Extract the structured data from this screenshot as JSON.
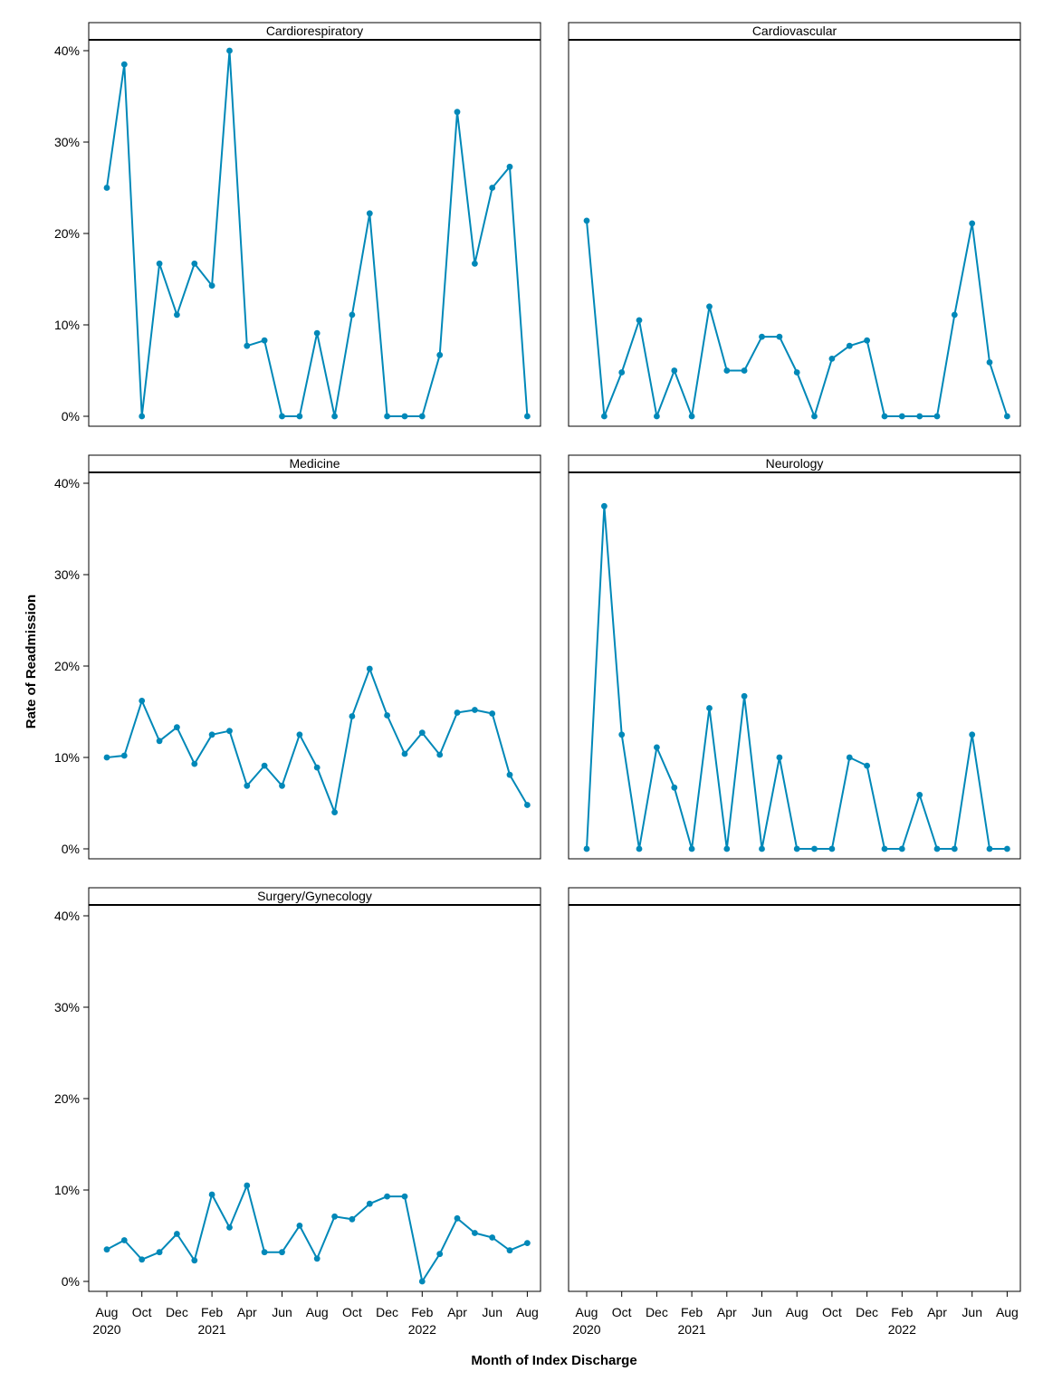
{
  "chart_data": {
    "type": "line",
    "layout": "facet-grid",
    "xlabel": "Month of Index Discharge",
    "ylabel": "Rate of Readmission",
    "ylim": [
      0,
      0.4
    ],
    "y_ticks": [
      0,
      0.1,
      0.2,
      0.3,
      0.4
    ],
    "y_tick_labels": [
      "0%",
      "10%",
      "20%",
      "30%",
      "40%"
    ],
    "x_months": [
      "2020-08",
      "2020-09",
      "2020-10",
      "2020-11",
      "2020-12",
      "2021-01",
      "2021-02",
      "2021-03",
      "2021-04",
      "2021-05",
      "2021-06",
      "2021-07",
      "2021-08",
      "2021-09",
      "2021-10",
      "2021-11",
      "2021-12",
      "2022-01",
      "2022-02",
      "2022-03",
      "2022-04",
      "2022-05",
      "2022-06",
      "2022-07",
      "2022-08"
    ],
    "x_tick_labels": [
      {
        "month": "Aug",
        "year": "2020"
      },
      {
        "month": "Oct",
        "year": ""
      },
      {
        "month": "Dec",
        "year": ""
      },
      {
        "month": "Feb",
        "year": "2021"
      },
      {
        "month": "Apr",
        "year": ""
      },
      {
        "month": "Jun",
        "year": ""
      },
      {
        "month": "Aug",
        "year": ""
      },
      {
        "month": "Oct",
        "year": ""
      },
      {
        "month": "Dec",
        "year": ""
      },
      {
        "month": "Feb",
        "year": "2022"
      },
      {
        "month": "Apr",
        "year": ""
      },
      {
        "month": "Jun",
        "year": ""
      },
      {
        "month": "Aug",
        "year": ""
      }
    ],
    "grid": false,
    "series_color": "#0088b8",
    "panels": [
      {
        "title": "Cardiorespiratory",
        "values": [
          0.25,
          0.385,
          0.0,
          0.167,
          0.111,
          0.167,
          0.143,
          0.4,
          0.077,
          0.083,
          0.0,
          0.0,
          0.091,
          0.0,
          0.111,
          0.222,
          0.0,
          0.0,
          0.0,
          0.067,
          0.333,
          0.167,
          0.25,
          0.273,
          0.0
        ]
      },
      {
        "title": "Cardiovascular",
        "values": [
          0.214,
          0.0,
          0.048,
          0.105,
          0.0,
          0.05,
          0.0,
          0.12,
          0.05,
          0.05,
          0.087,
          0.087,
          0.048,
          0.0,
          0.063,
          0.077,
          0.083,
          0.0,
          0.0,
          0.0,
          0.0,
          0.111,
          0.211,
          0.059,
          0.0
        ]
      },
      {
        "title": "Medicine",
        "values": [
          0.1,
          0.102,
          0.162,
          0.118,
          0.133,
          0.093,
          0.125,
          0.129,
          0.069,
          0.091,
          0.069,
          0.125,
          0.089,
          0.04,
          0.145,
          0.197,
          0.146,
          0.104,
          0.127,
          0.103,
          0.149,
          0.152,
          0.148,
          0.081,
          0.048
        ]
      },
      {
        "title": "Neurology",
        "values": [
          0.0,
          0.375,
          0.125,
          0.0,
          0.111,
          0.067,
          0.0,
          0.154,
          0.0,
          0.167,
          0.0,
          0.1,
          0.0,
          0.0,
          0.0,
          0.1,
          0.091,
          0.0,
          0.0,
          0.059,
          0.0,
          0.0,
          0.125,
          0.0,
          0.0
        ]
      },
      {
        "title": "Surgery/Gynecology",
        "values": [
          0.035,
          0.045,
          0.024,
          0.032,
          0.052,
          0.023,
          0.095,
          0.059,
          0.105,
          0.032,
          0.032,
          0.061,
          0.025,
          0.071,
          0.068,
          0.085,
          0.093,
          0.093,
          0.0,
          0.03,
          0.069,
          0.053,
          0.048,
          0.034,
          0.042
        ]
      },
      {
        "title": "",
        "values": []
      }
    ]
  }
}
